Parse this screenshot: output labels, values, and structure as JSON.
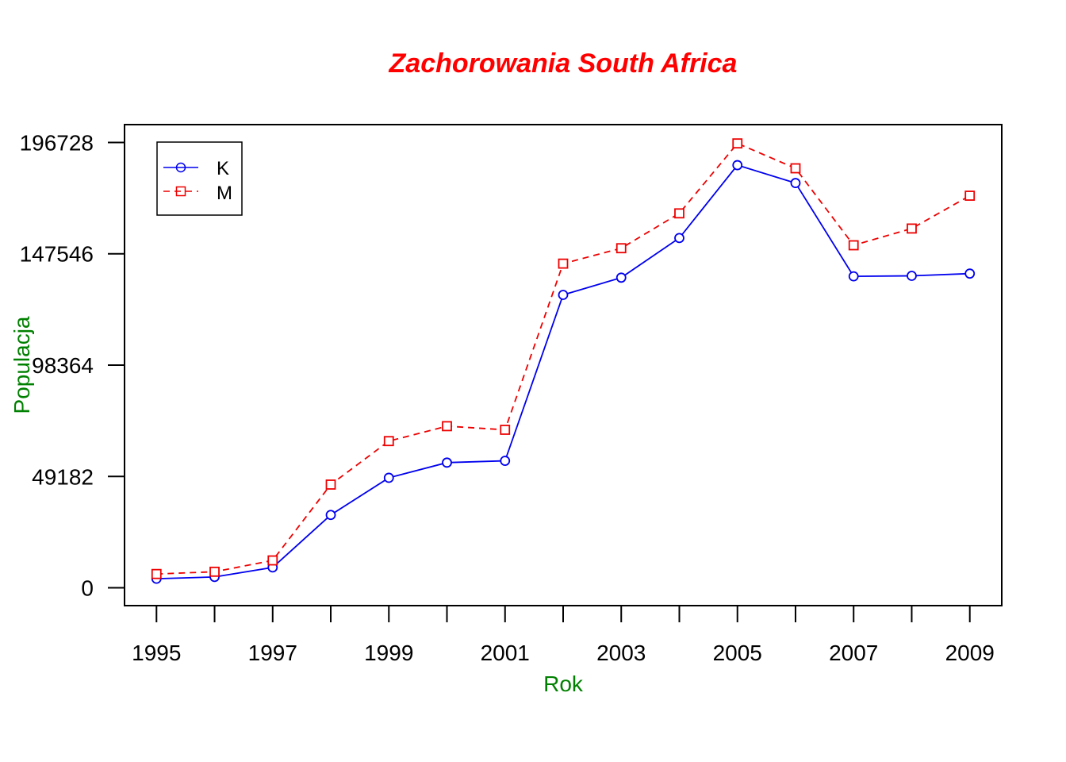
{
  "chart_data": {
    "type": "line",
    "title": "Zachorowania South Africa",
    "xlabel": "Rok",
    "ylabel": "Populacja",
    "x": [
      1995,
      1996,
      1997,
      1998,
      1999,
      2000,
      2001,
      2002,
      2003,
      2004,
      2005,
      2006,
      2007,
      2008,
      2009
    ],
    "x_tick_labels": [
      "1995",
      "1997",
      "1999",
      "2001",
      "2003",
      "2005",
      "2007",
      "2009"
    ],
    "y_tick_labels": [
      "0",
      "49182",
      "98364",
      "147546",
      "196728"
    ],
    "y_ticks": [
      0,
      49182,
      98364,
      147546,
      196728
    ],
    "xlim": [
      1994.45,
      2009.55
    ],
    "ylim": [
      -7869,
      204597
    ],
    "grid": false,
    "legend_position": "top-left",
    "series": [
      {
        "name": "K",
        "color": "#0000ee",
        "line_style": "solid",
        "marker": "circle",
        "values": [
          4000,
          4800,
          9000,
          32200,
          48600,
          55300,
          56100,
          129400,
          137000,
          154500,
          186700,
          178800,
          137600,
          137800,
          138800
        ]
      },
      {
        "name": "M",
        "color": "#ee0000",
        "line_style": "dashed",
        "marker": "square",
        "values": [
          6100,
          7100,
          12100,
          45600,
          64800,
          71400,
          69800,
          143200,
          150000,
          165400,
          196300,
          185300,
          151300,
          158700,
          173200
        ]
      }
    ],
    "colors": {
      "title": "#ff0000",
      "axis_labels": "#008000",
      "axes": "#000000"
    }
  }
}
